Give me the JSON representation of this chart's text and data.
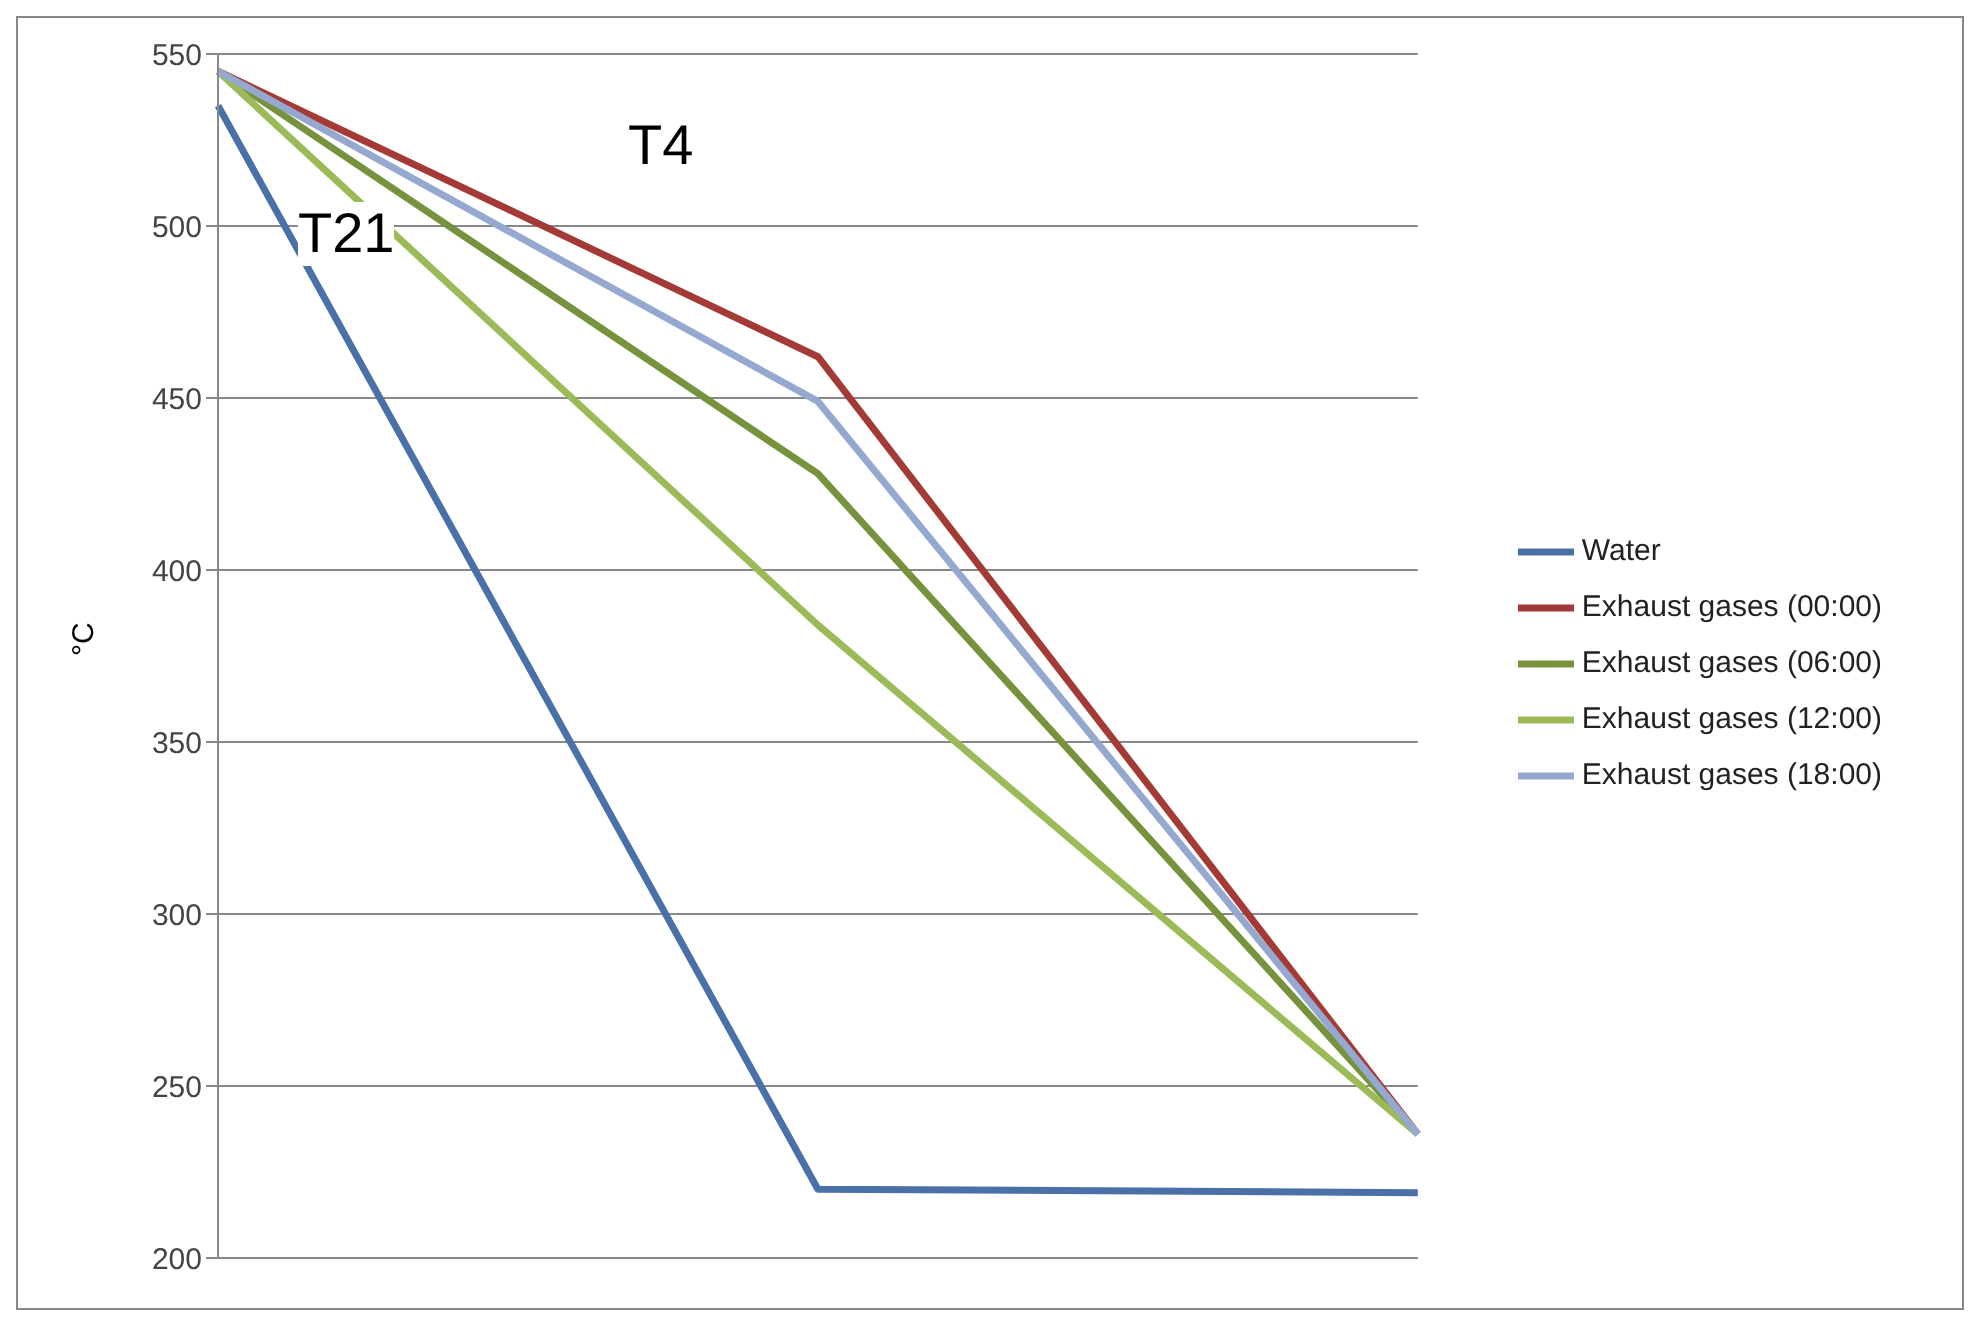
{
  "chart_data": {
    "type": "line",
    "ylabel": "°C",
    "categories": [
      null,
      null,
      null
    ],
    "series": [
      {
        "name": "Water",
        "color": "#4a70a8",
        "values": [
          535,
          220,
          219
        ]
      },
      {
        "name": "Exhaust gases (00:00)",
        "color": "#a33a36",
        "values": [
          545,
          462,
          236
        ]
      },
      {
        "name": "Exhaust gases (06:00)",
        "color": "#76923c",
        "values": [
          545,
          428,
          236
        ]
      },
      {
        "name": "Exhaust gases (12:00)",
        "color": "#9bbb59",
        "values": [
          545,
          384,
          236
        ]
      },
      {
        "name": "Exhaust gases (18:00)",
        "color": "#95a9d0",
        "values": [
          545,
          449,
          236
        ]
      }
    ],
    "ylim": [
      200,
      550
    ],
    "yticks": [
      200,
      250,
      300,
      350,
      400,
      450,
      500,
      550
    ],
    "grid": "y",
    "legend": "right",
    "marker": "none",
    "line_style": "solid",
    "annotations": [
      "T21",
      "T4"
    ]
  }
}
